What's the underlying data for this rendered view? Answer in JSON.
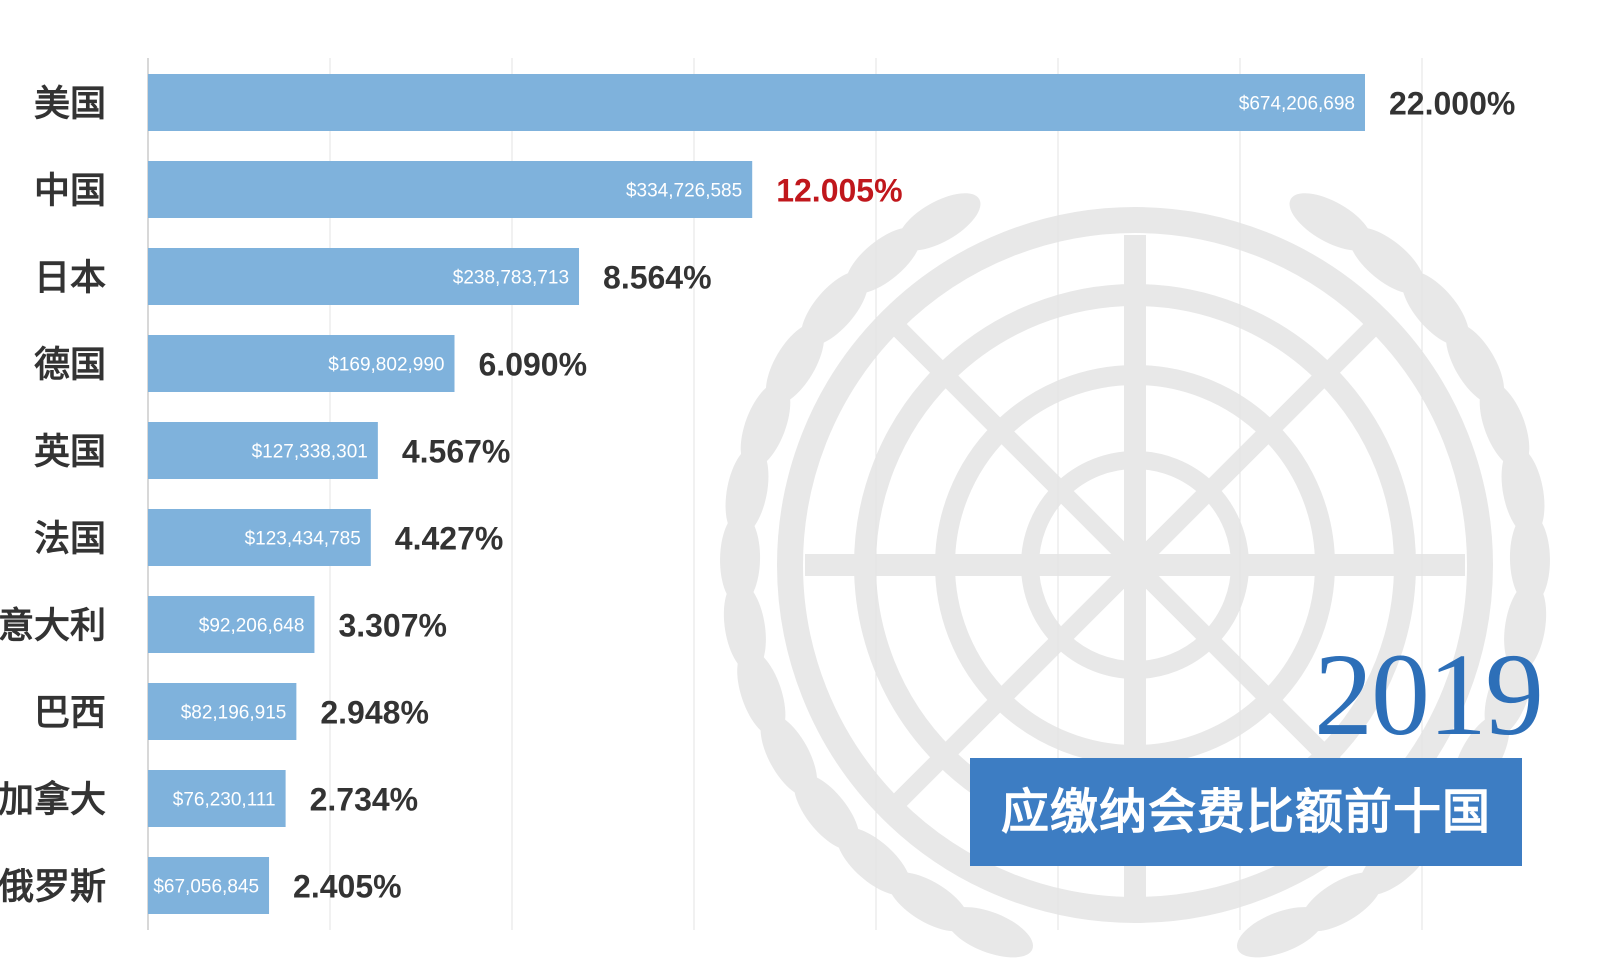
{
  "colors": {
    "bar": "#7fb2dc",
    "bar_label": "#ffffff",
    "pct_default": "#333333",
    "pct_highlight": "#c0171c",
    "category": "#333333",
    "grid": "#e3e3e3",
    "watermark": "#e8e8e8",
    "banner_bg": "#3d7dc3",
    "year": "#2d6fb8"
  },
  "overlay": {
    "year": "2019",
    "title": "应缴纳会费比额前十国",
    "watermark_icon": "un-emblem-icon"
  },
  "chart_data": {
    "type": "bar",
    "orientation": "horizontal",
    "title": "应缴纳会费比额前十国",
    "xlim": [
      0,
      700000000
    ],
    "grid": true,
    "categories": [
      "美国",
      "中国",
      "日本",
      "德国",
      "英国",
      "法国",
      "意大利",
      "巴西",
      "加拿大",
      "俄罗斯"
    ],
    "values": [
      674206698,
      334726585,
      238783713,
      169802990,
      127338301,
      123434785,
      92206648,
      82196915,
      76230111,
      67056845
    ],
    "value_labels": [
      "$674,206,698",
      "$334,726,585",
      "$238,783,713",
      "$169,802,990",
      "$127,338,301",
      "$123,434,785",
      "$92,206,648",
      "$82,196,915",
      "$76,230,111",
      "$67,056,845"
    ],
    "percent_labels": [
      "22.000%",
      "12.005%",
      "8.564%",
      "6.090%",
      "4.567%",
      "4.427%",
      "3.307%",
      "2.948%",
      "2.734%",
      "2.405%"
    ],
    "highlight": "中国"
  }
}
